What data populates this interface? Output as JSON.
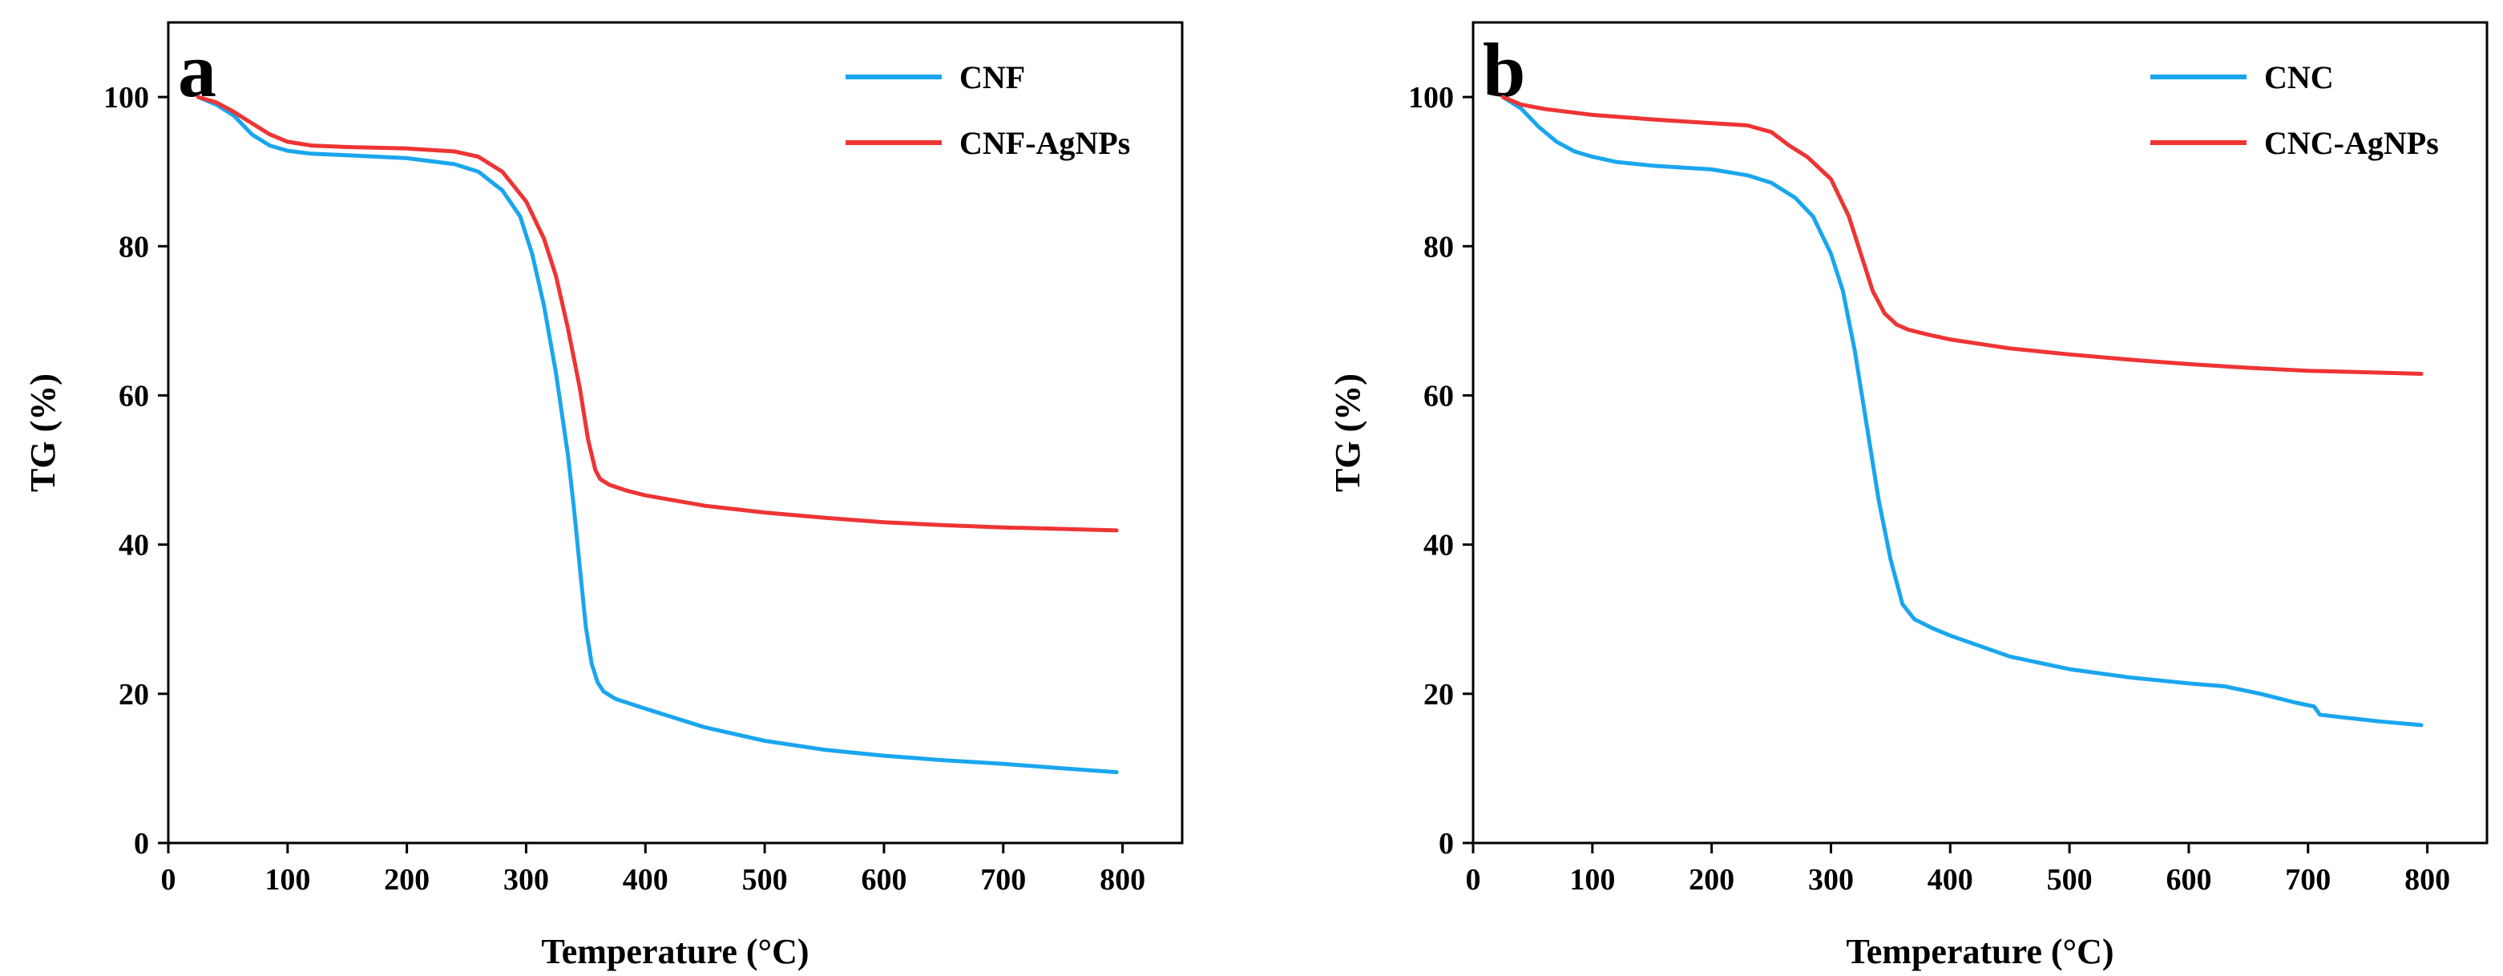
{
  "chart_data": [
    {
      "type": "line",
      "panel_label": "a",
      "xlabel": "Temperature (°C)",
      "ylabel": "TG (%)",
      "xlim": [
        0,
        850
      ],
      "ylim": [
        0,
        110
      ],
      "xticks": [
        0,
        100,
        200,
        300,
        400,
        500,
        600,
        700,
        800
      ],
      "yticks": [
        0,
        20,
        40,
        60,
        80,
        100
      ],
      "grid": false,
      "legend_position": "top-right",
      "series": [
        {
          "name": "CNF",
          "color": "#1aa6ee",
          "x": [
            25,
            40,
            55,
            70,
            85,
            100,
            120,
            150,
            200,
            240,
            260,
            280,
            295,
            305,
            315,
            325,
            335,
            340,
            345,
            350,
            355,
            360,
            365,
            375,
            400,
            450,
            500,
            550,
            600,
            650,
            700,
            750,
            795
          ],
          "y": [
            100,
            99,
            97.5,
            95,
            93.5,
            92.8,
            92.4,
            92.2,
            91.8,
            91,
            90,
            87.5,
            84,
            79,
            72,
            63,
            52,
            45,
            37,
            29,
            24,
            21.5,
            20.3,
            19.3,
            18,
            15.5,
            13.7,
            12.5,
            11.7,
            11.1,
            10.6,
            10,
            9.5
          ]
        },
        {
          "name": "CNF-AgNPs",
          "color": "#ee3434",
          "x": [
            25,
            40,
            55,
            70,
            85,
            100,
            120,
            150,
            200,
            240,
            260,
            280,
            300,
            315,
            325,
            335,
            345,
            352,
            358,
            362,
            370,
            385,
            400,
            450,
            500,
            550,
            600,
            650,
            700,
            750,
            795
          ],
          "y": [
            100,
            99.3,
            98,
            96.5,
            95,
            94,
            93.5,
            93.3,
            93.1,
            92.7,
            92,
            90,
            86,
            81,
            76,
            69,
            61,
            54,
            50,
            48.8,
            48,
            47.2,
            46.6,
            45.2,
            44.3,
            43.6,
            43,
            42.6,
            42.3,
            42.1,
            41.9
          ]
        }
      ]
    },
    {
      "type": "line",
      "panel_label": "b",
      "xlabel": "Temperature (°C)",
      "ylabel": "TG (%)",
      "xlim": [
        0,
        850
      ],
      "ylim": [
        0,
        110
      ],
      "xticks": [
        0,
        100,
        200,
        300,
        400,
        500,
        600,
        700,
        800
      ],
      "yticks": [
        0,
        20,
        40,
        60,
        80,
        100
      ],
      "grid": false,
      "legend_position": "top-right",
      "series": [
        {
          "name": "CNC",
          "color": "#1aa6ee",
          "x": [
            25,
            40,
            55,
            70,
            85,
            100,
            120,
            150,
            200,
            230,
            250,
            270,
            285,
            300,
            310,
            320,
            330,
            340,
            350,
            360,
            370,
            385,
            400,
            450,
            500,
            550,
            600,
            630,
            660,
            690,
            705,
            710,
            720,
            760,
            795
          ],
          "y": [
            100,
            98.5,
            96,
            94,
            92.7,
            92,
            91.3,
            90.8,
            90.3,
            89.5,
            88.5,
            86.5,
            84,
            79,
            74,
            66,
            56,
            46,
            38,
            32,
            30,
            28.8,
            27.8,
            25,
            23.3,
            22.2,
            21.4,
            21,
            20,
            18.8,
            18.3,
            17.2,
            17,
            16.3,
            15.8
          ]
        },
        {
          "name": "CNC-AgNPs",
          "color": "#ee3434",
          "x": [
            25,
            40,
            60,
            80,
            100,
            150,
            200,
            230,
            250,
            265,
            280,
            300,
            315,
            325,
            335,
            345,
            355,
            365,
            380,
            400,
            450,
            500,
            550,
            600,
            650,
            700,
            750,
            795
          ],
          "y": [
            100,
            99,
            98.4,
            98,
            97.6,
            97,
            96.5,
            96.2,
            95.3,
            93.5,
            92,
            89,
            84,
            79,
            74,
            71,
            69.5,
            68.8,
            68.2,
            67.5,
            66.3,
            65.5,
            64.8,
            64.2,
            63.7,
            63.3,
            63.1,
            62.9
          ]
        }
      ]
    }
  ]
}
